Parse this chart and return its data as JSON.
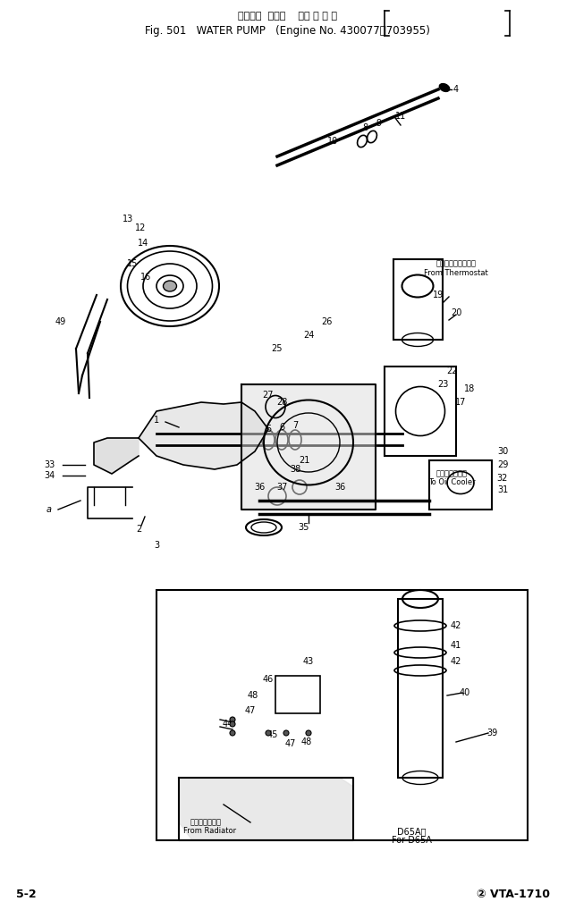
{
  "title_line1": "ウォータ  ポンプ  （運 用 号 機",
  "title_line2": "Fig. 501   WATER PUMP  (Engine No. 430077～703955)",
  "footer_left": "5-2",
  "footer_right": "Ⓟ VTA-1710",
  "bg_color": "#ffffff",
  "line_color": "#000000",
  "fig_width": 6.43,
  "fig_height": 10.18,
  "dpi": 100
}
